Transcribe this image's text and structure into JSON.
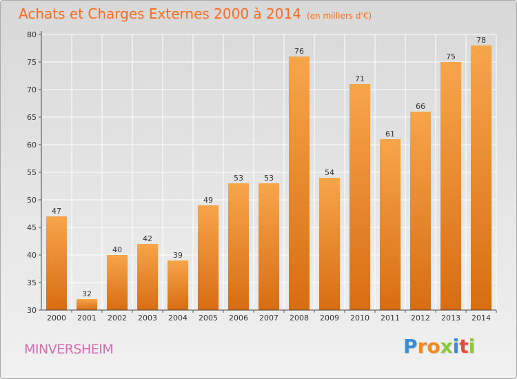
{
  "header": {
    "title": "Achats et Charges Externes 2000 à 2014",
    "subtitle": "(en milliers d'€)"
  },
  "footer": {
    "commune": "MINVERSHEIM",
    "logo_text": "Proxiti",
    "logo_letters": [
      {
        "ch": "P",
        "color": "#3a8fd4"
      },
      {
        "ch": "r",
        "color": "#f08b1d"
      },
      {
        "ch": "o",
        "color": "#f08b1d"
      },
      {
        "ch": "x",
        "color": "#8dc63f"
      },
      {
        "ch": "i",
        "color": "#3a8fd4"
      },
      {
        "ch": "t",
        "color": "#e84a3c"
      },
      {
        "ch": "i",
        "color": "#8dc63f"
      }
    ]
  },
  "colors": {
    "bar_top": "#f7a54b",
    "bar_bottom": "#d86d12",
    "title": "#ff6a1a",
    "commune": "#d86bb0"
  },
  "chart_data": {
    "type": "bar",
    "title": "Achats et Charges Externes 2000 à 2014",
    "subtitle": "(en milliers d'€)",
    "categories": [
      "2000",
      "2001",
      "2002",
      "2003",
      "2004",
      "2005",
      "2006",
      "2007",
      "2008",
      "2009",
      "2010",
      "2011",
      "2012",
      "2013",
      "2014"
    ],
    "values": [
      47,
      32,
      40,
      42,
      39,
      49,
      53,
      53,
      76,
      54,
      71,
      61,
      66,
      75,
      78
    ],
    "ylim": [
      30,
      80
    ],
    "yticks": [
      30,
      35,
      40,
      45,
      50,
      55,
      60,
      65,
      70,
      75,
      80
    ],
    "grid": true,
    "data_labels": true
  }
}
